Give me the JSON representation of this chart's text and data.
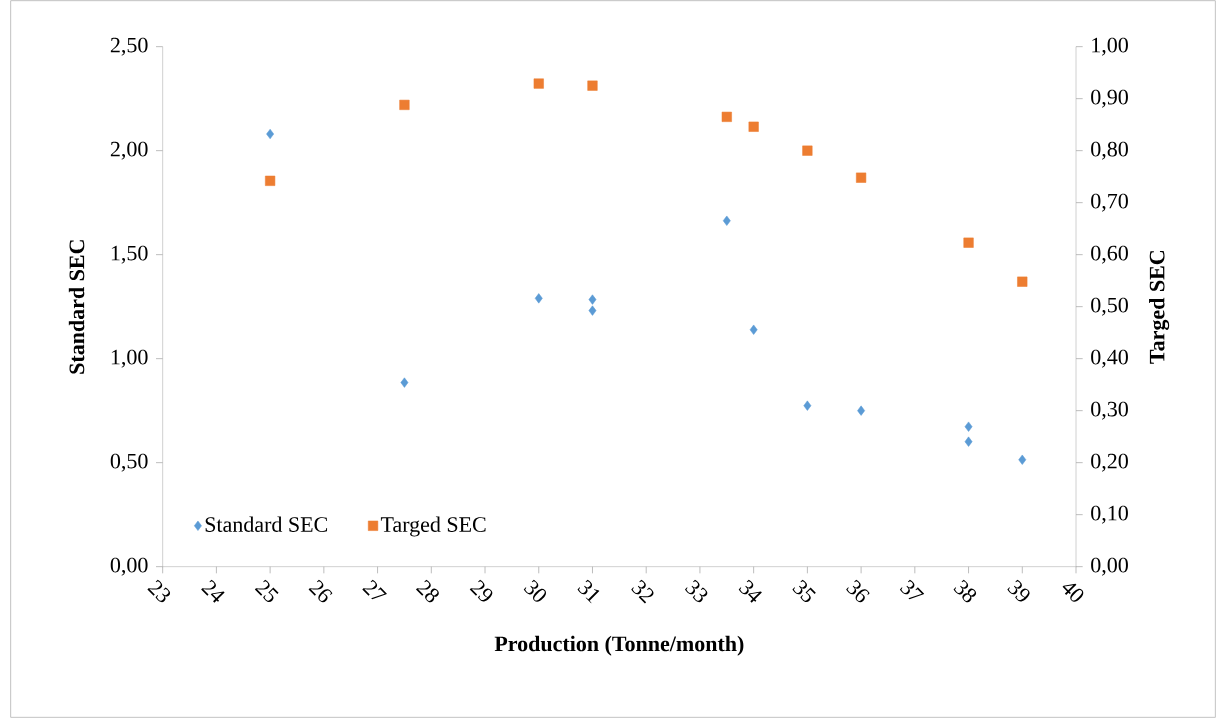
{
  "chart_data": {
    "type": "scatter",
    "xlabel": "Production (Tonne/month)",
    "ylabel": "Standard SEC",
    "y2label": "Targed SEC",
    "series": [
      {
        "name": "Standard SEC",
        "color": "#5b9bd5",
        "marker": "diamond",
        "x": [
          25,
          27.5,
          30,
          31,
          31,
          33.5,
          34,
          35,
          36,
          38,
          38,
          39
        ],
        "values": [
          2.08,
          0.885,
          1.29,
          1.284,
          1.231,
          1.663,
          1.139,
          0.774,
          0.75,
          0.673,
          0.601,
          0.514
        ]
      },
      {
        "name": "Targed SEC",
        "color": "#ed7d31",
        "marker": "square",
        "axis": "y2",
        "x": [
          25,
          27.5,
          30,
          31,
          33.5,
          34,
          35,
          36,
          38,
          39
        ],
        "values": [
          0.742,
          0.888,
          0.929,
          0.925,
          0.865,
          0.846,
          0.8,
          0.748,
          0.623,
          0.548
        ]
      }
    ],
    "xlim": [
      23,
      40
    ],
    "xticks": [
      23,
      24,
      25,
      26,
      27,
      28,
      29,
      30,
      31,
      32,
      33,
      34,
      35,
      36,
      37,
      38,
      39,
      40
    ],
    "ylim": [
      0,
      2.5
    ],
    "yticks": [
      {
        "value": 0,
        "label": "0,00"
      },
      {
        "value": 0.5,
        "label": "0,50"
      },
      {
        "value": 1,
        "label": "1,00"
      },
      {
        "value": 1.5,
        "label": "1,50"
      },
      {
        "value": 2,
        "label": "2,00"
      },
      {
        "value": 2.5,
        "label": "2,50"
      }
    ],
    "y2lim": [
      0,
      1
    ],
    "y2ticks": [
      {
        "value": 0,
        "label": "0,00"
      },
      {
        "value": 0.1,
        "label": "0,10"
      },
      {
        "value": 0.2,
        "label": "0,20"
      },
      {
        "value": 0.3,
        "label": "0,30"
      },
      {
        "value": 0.4,
        "label": "0,40"
      },
      {
        "value": 0.5,
        "label": "0,50"
      },
      {
        "value": 0.6,
        "label": "0,60"
      },
      {
        "value": 0.7,
        "label": "0,70"
      },
      {
        "value": 0.8,
        "label": "0,80"
      },
      {
        "value": 0.9,
        "label": "0,90"
      },
      {
        "value": 1,
        "label": "1,00"
      }
    ],
    "grid": false,
    "legend": "bottom left"
  }
}
